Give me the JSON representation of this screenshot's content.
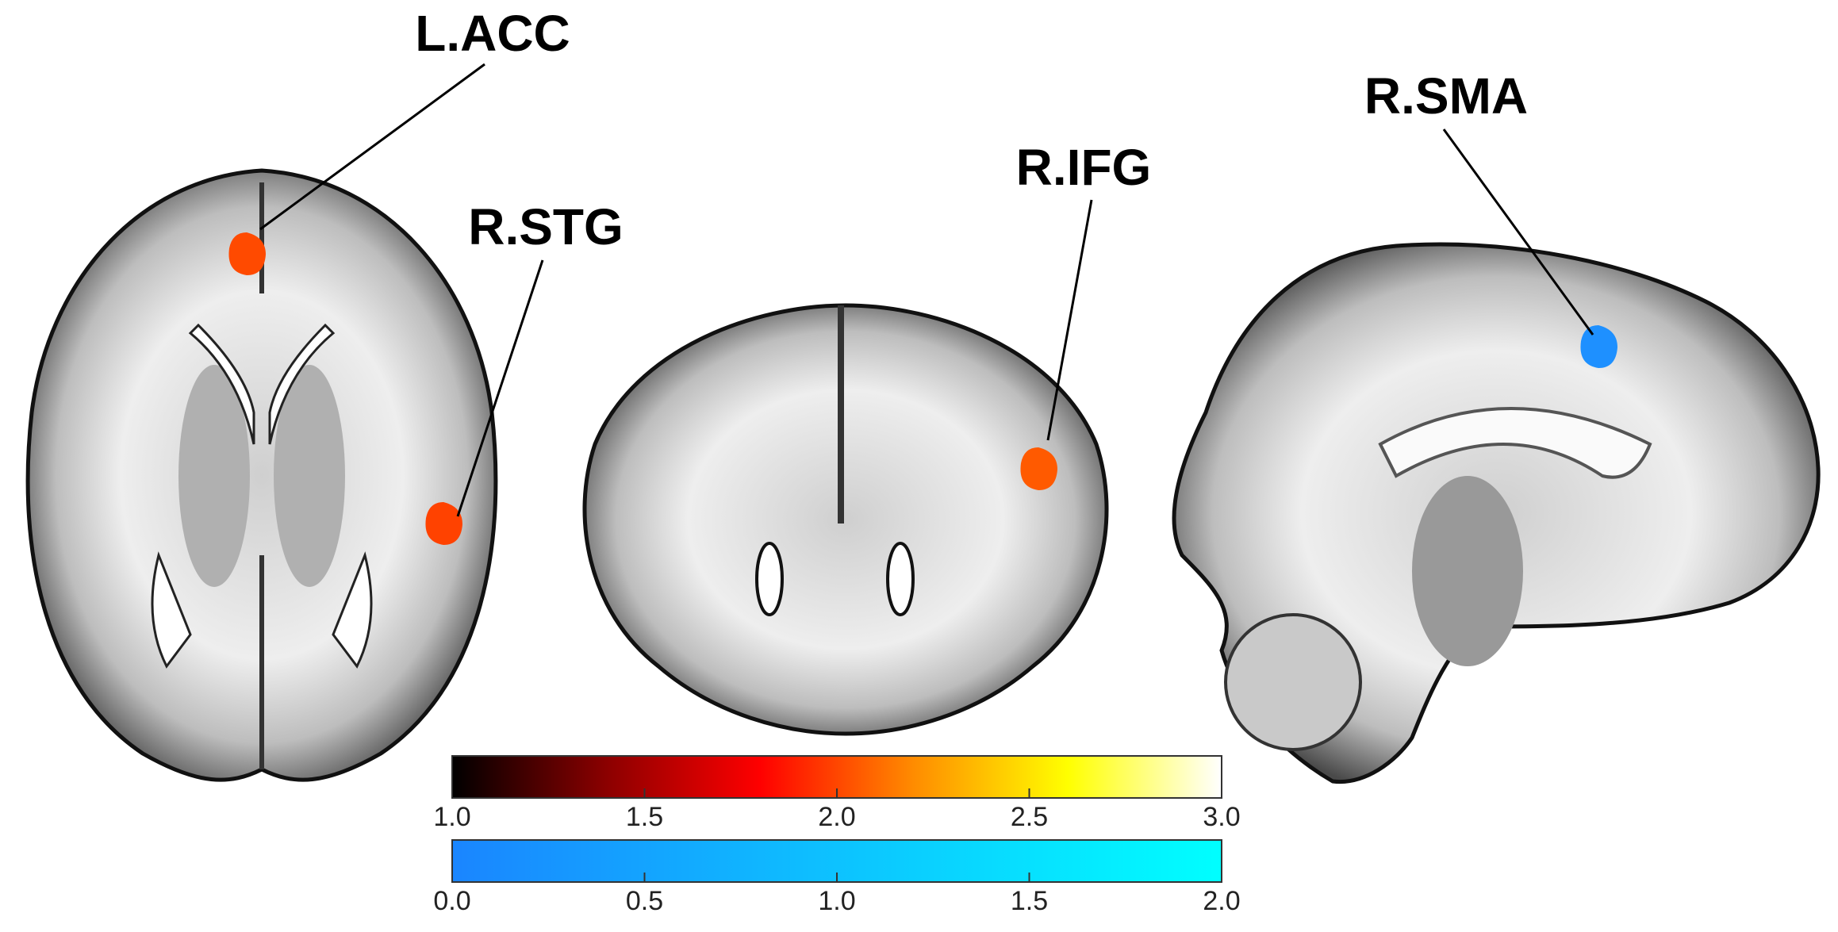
{
  "labels": [
    {
      "text": "L.ACC",
      "color": "#ff4a00"
    },
    {
      "text": "R.STG",
      "color": "#ff4200"
    },
    {
      "text": "R.IFG",
      "color": "#ff5a00"
    },
    {
      "text": "R.SMA",
      "color": "#1e90ff"
    }
  ],
  "colorbars": [
    {
      "lim": [
        1,
        3
      ],
      "colors": [
        "#000000",
        "#8b0000",
        "#ff0000",
        "#ff8c00",
        "#ffff00",
        "#ffffff"
      ],
      "ticks": [
        {
          "value": 1,
          "label": "1.0"
        },
        {
          "value": 1.5,
          "label": "1.5"
        },
        {
          "value": 2,
          "label": "2.0"
        },
        {
          "value": 2.5,
          "label": "2.5"
        },
        {
          "value": 3,
          "label": "3.0"
        }
      ]
    },
    {
      "lim": [
        0,
        2
      ],
      "colors": [
        "#1a85ff",
        "#00ffff"
      ],
      "ticks": [
        {
          "value": 0,
          "label": "0.0"
        },
        {
          "value": 0.5,
          "label": "0.5"
        },
        {
          "value": 1,
          "label": "1.0"
        },
        {
          "value": 1.5,
          "label": "1.5"
        },
        {
          "value": 2,
          "label": "2.0"
        }
      ]
    }
  ]
}
